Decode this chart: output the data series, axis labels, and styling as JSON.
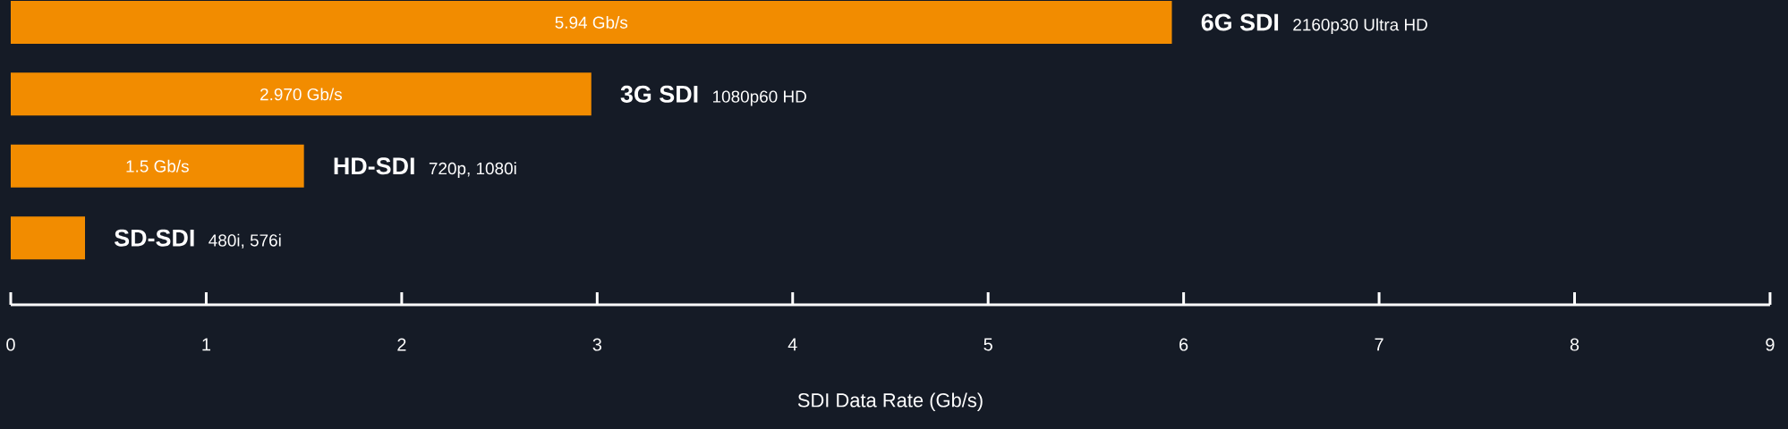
{
  "chart_data": {
    "type": "bar",
    "orientation": "horizontal",
    "categories": [
      "6G SDI",
      "3G SDI",
      "HD-SDI",
      "SD-SDI"
    ],
    "values": [
      5.94,
      2.97,
      1.5,
      0.38
    ],
    "value_labels": [
      "5.94 Gb/s",
      "2.970 Gb/s",
      "1.5 Gb/s",
      null
    ],
    "color": "#f28c00",
    "xlim": [
      0,
      9
    ],
    "xticks": [
      0,
      1,
      2,
      3,
      4,
      5,
      6,
      7,
      8,
      9
    ],
    "xlabel": "SDI Data Rate (Gb/s)",
    "annotations": [
      "2160p30 Ultra HD",
      "1080p60 HD",
      "720p, 1080i",
      "480i, 576i"
    ]
  }
}
